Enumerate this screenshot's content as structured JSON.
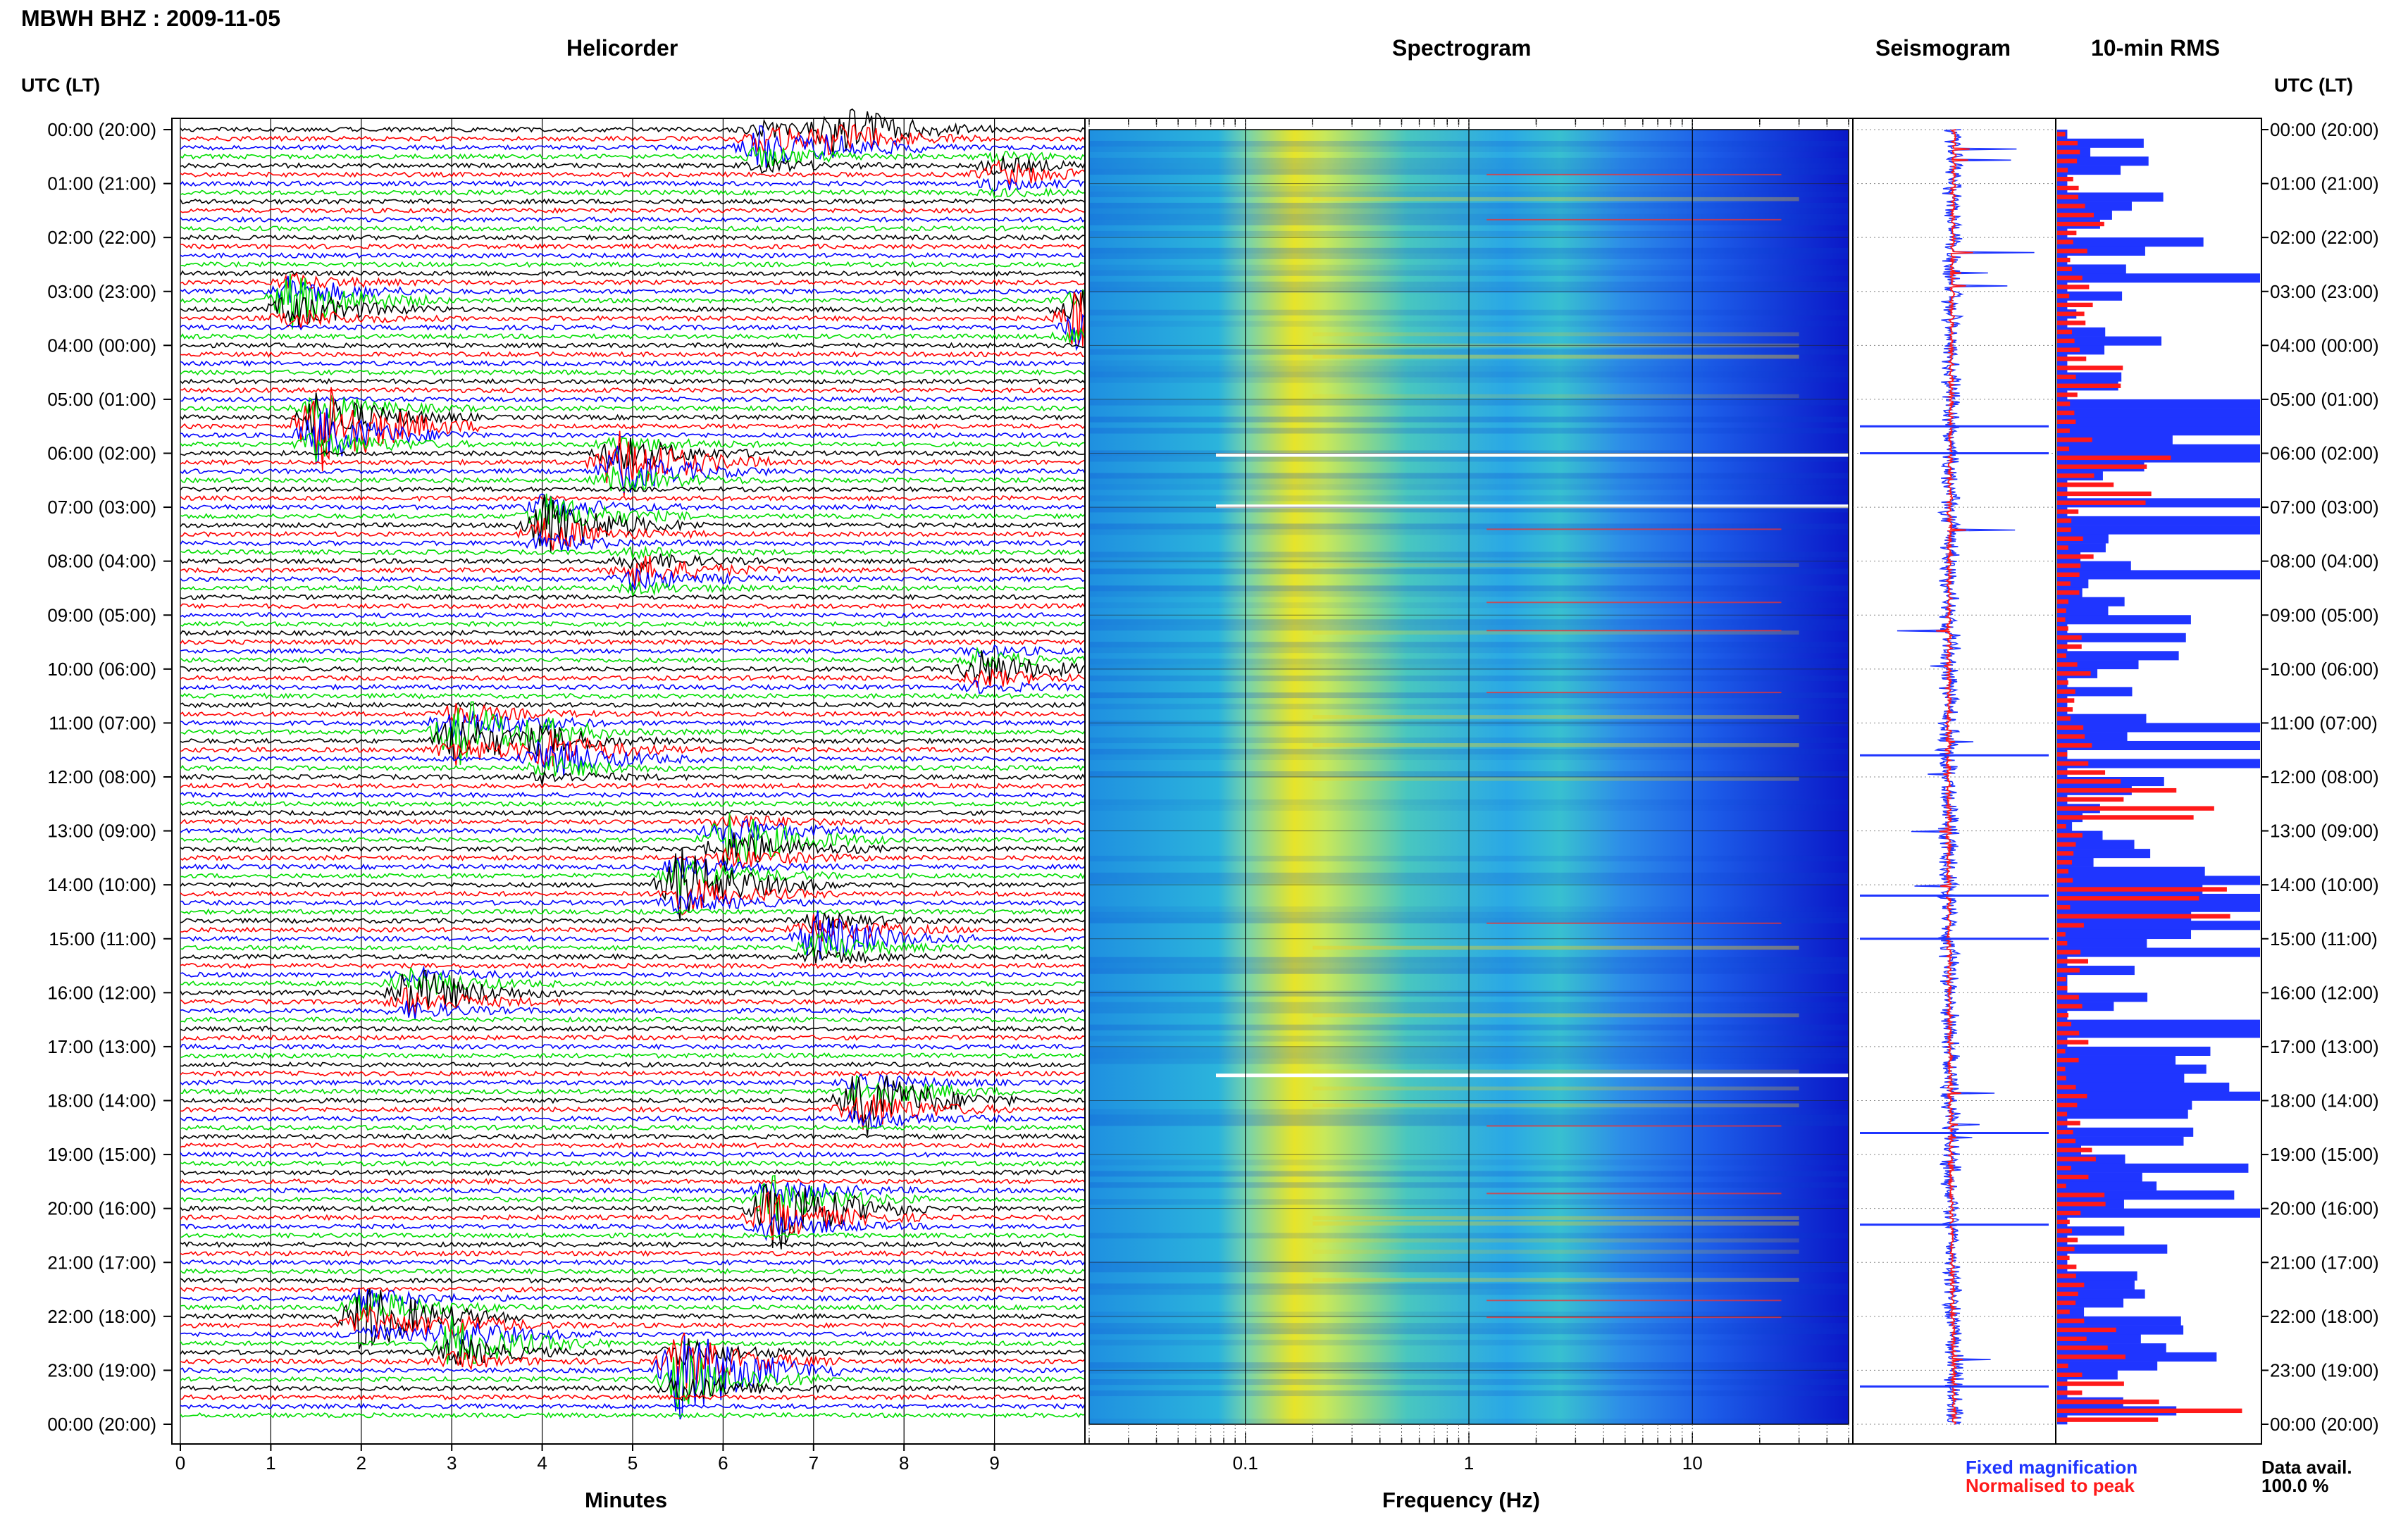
{
  "page": {
    "title": "MBWH BHZ : 2009-11-05",
    "time_axis_title": "UTC (LT)"
  },
  "panels": {
    "helicorder": "Helicorder",
    "spectrogram": "Spectrogram",
    "seismogram": "Seismogram",
    "rms": "10-min RMS"
  },
  "axes": {
    "helicorder_xlabel": "Minutes",
    "spectrogram_xlabel": "Frequency (Hz)"
  },
  "legend": {
    "fixed": "Fixed magnification",
    "normalised": "Normalised to peak",
    "fixed_color": "#1f35ff",
    "normalised_color": "#ff1a1a"
  },
  "data_availability": {
    "label": "Data avail.",
    "value": "100.0 %"
  },
  "colors": {
    "trace_cycle": [
      "#000000",
      "#ff0000",
      "#0000ff",
      "#00dd00"
    ]
  },
  "chart_data": [
    {
      "type": "line",
      "title": "Helicorder",
      "xlabel": "Minutes",
      "xlim": [
        0,
        10
      ],
      "x_ticks": [
        "0",
        "1",
        "2",
        "3",
        "4",
        "5",
        "6",
        "7",
        "8",
        "9"
      ],
      "y_ticks": [
        "00:00 (20:00)",
        "01:00 (21:00)",
        "02:00 (22:00)",
        "03:00 (23:00)",
        "04:00 (00:00)",
        "05:00 (01:00)",
        "06:00 (02:00)",
        "07:00 (03:00)",
        "08:00 (04:00)",
        "09:00 (05:00)",
        "10:00 (06:00)",
        "11:00 (07:00)",
        "12:00 (08:00)",
        "13:00 (09:00)",
        "14:00 (10:00)",
        "15:00 (11:00)",
        "16:00 (12:00)",
        "17:00 (13:00)",
        "18:00 (14:00)",
        "19:00 (15:00)",
        "20:00 (16:00)",
        "21:00 (17:00)",
        "22:00 (18:00)",
        "23:00 (19:00)",
        "00:00 (20:00)"
      ],
      "y_range_hours": [
        0,
        24
      ],
      "rows_per_hour": 6,
      "series_colors": [
        "#000000",
        "#ff0000",
        "#0000ff",
        "#00dd00"
      ],
      "events": [
        {
          "hour": 0.0,
          "minute": 7.2,
          "amp": 3
        },
        {
          "hour": 0.3,
          "minute": 6.4,
          "amp": 2.5
        },
        {
          "hour": 0.8,
          "minute": 9.0,
          "amp": 1.5
        },
        {
          "hour": 3.2,
          "minute": 1.2,
          "amp": 3.5
        },
        {
          "hour": 3.5,
          "minute": 9.9,
          "amp": 4
        },
        {
          "hour": 5.5,
          "minute": 1.5,
          "amp": 6
        },
        {
          "hour": 6.2,
          "minute": 4.8,
          "amp": 4.5
        },
        {
          "hour": 7.3,
          "minute": 4.0,
          "amp": 4
        },
        {
          "hour": 8.2,
          "minute": 5.0,
          "amp": 2
        },
        {
          "hour": 10.0,
          "minute": 8.8,
          "amp": 2
        },
        {
          "hour": 11.2,
          "minute": 3.0,
          "amp": 5
        },
        {
          "hour": 11.6,
          "minute": 4.0,
          "amp": 3
        },
        {
          "hour": 13.2,
          "minute": 6.0,
          "amp": 4
        },
        {
          "hour": 14.0,
          "minute": 5.5,
          "amp": 4
        },
        {
          "hour": 15.0,
          "minute": 7.0,
          "amp": 3
        },
        {
          "hour": 16.0,
          "minute": 2.5,
          "amp": 3
        },
        {
          "hour": 18.0,
          "minute": 7.5,
          "amp": 4
        },
        {
          "hour": 20.0,
          "minute": 6.5,
          "amp": 5
        },
        {
          "hour": 22.0,
          "minute": 2.0,
          "amp": 4
        },
        {
          "hour": 22.5,
          "minute": 3.0,
          "amp": 3
        },
        {
          "hour": 23.0,
          "minute": 5.5,
          "amp": 6
        }
      ]
    },
    {
      "type": "heatmap",
      "title": "Spectrogram",
      "xlabel": "Frequency (Hz)",
      "x_scale": "log",
      "xlim": [
        0.02,
        50
      ],
      "x_ticks": [
        "0.1",
        "1",
        "10"
      ],
      "y_range_hours": [
        0,
        24
      ],
      "dominant_band_hz": [
        0.15,
        0.35
      ]
    },
    {
      "type": "line",
      "title": "Seismogram",
      "series": [
        {
          "name": "Fixed magnification",
          "color": "#1f35ff"
        },
        {
          "name": "Normalised to peak",
          "color": "#ff1a1a"
        }
      ],
      "y_range_hours": [
        0,
        24
      ]
    },
    {
      "type": "bar",
      "title": "10-min RMS",
      "orientation": "horizontal",
      "y_range_hours": [
        0,
        24
      ],
      "series": [
        {
          "name": "Fixed magnification",
          "color": "#1f35ff",
          "values": [
            0.1,
            0.15,
            0.35,
            0.2,
            0.15,
            0.9,
            0.25,
            0.1,
            0.4,
            0.3,
            0.1,
            0.15,
            0.3,
            0.45,
            0.9,
            0.2,
            0.1,
            0.85,
            0.3,
            0.6,
            0.15,
            0.1,
            0.55,
            0.35
          ]
        },
        {
          "name": "Normalised to peak",
          "color": "#ff1a1a",
          "values": [
            0.1,
            0.2,
            0.1,
            0.15,
            0.3,
            0.15,
            0.5,
            0.2,
            0.1,
            0.1,
            0.15,
            0.2,
            0.9,
            0.15,
            0.75,
            0.1,
            0.3,
            0.1,
            0.15,
            0.2,
            0.1,
            0.2,
            0.3,
            0.8
          ]
        }
      ]
    }
  ]
}
